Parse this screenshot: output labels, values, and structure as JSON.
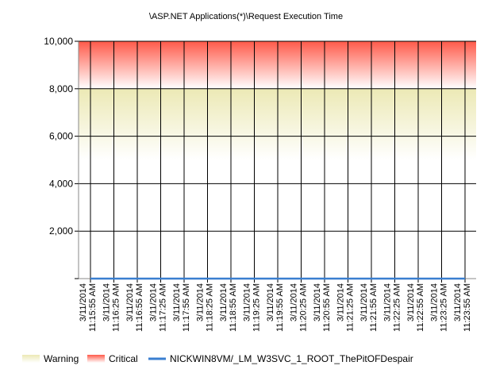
{
  "chart_data": {
    "type": "line",
    "title": "\\ASP.NET Applications(*)\\Request Execution Time",
    "xlabel": "",
    "ylabel": "",
    "ylim": [
      0,
      10000
    ],
    "y_ticks": [
      0,
      2000,
      4000,
      6000,
      8000,
      10000
    ],
    "y_tick_labels": [
      "",
      "2,000",
      "4,000",
      "6,000",
      "8,000",
      "10,000"
    ],
    "grid": true,
    "x_tick_labels": [
      {
        "date": "3/11/2014",
        "time": "11:15:55 AM"
      },
      {
        "date": "3/11/2014",
        "time": "11:16:25 AM"
      },
      {
        "date": "3/11/2014",
        "time": "11:16:55 AM"
      },
      {
        "date": "3/11/2014",
        "time": "11:17:25 AM"
      },
      {
        "date": "3/11/2014",
        "time": "11:17:55 AM"
      },
      {
        "date": "3/11/2014",
        "time": "11:18:25 AM"
      },
      {
        "date": "3/11/2014",
        "time": "11:18:55 AM"
      },
      {
        "date": "3/11/2014",
        "time": "11:19:25 AM"
      },
      {
        "date": "3/11/2014",
        "time": "11:19:55 AM"
      },
      {
        "date": "3/11/2014",
        "time": "11:20:25 AM"
      },
      {
        "date": "3/11/2014",
        "time": "11:20:55 AM"
      },
      {
        "date": "3/11/2014",
        "time": "11:21:25 AM"
      },
      {
        "date": "3/11/2014",
        "time": "11:21:55 AM"
      },
      {
        "date": "3/11/2014",
        "time": "11:22:25 AM"
      },
      {
        "date": "3/11/2014",
        "time": "11:22:55 AM"
      },
      {
        "date": "3/11/2014",
        "time": "11:23:25 AM"
      },
      {
        "date": "3/11/2014",
        "time": "11:23:55 AM"
      }
    ],
    "thresholds": [
      {
        "name": "Warning",
        "from": 5000,
        "to": 8000,
        "color": "#ece9b5"
      },
      {
        "name": "Critical",
        "from": 8000,
        "to": 10000,
        "color": "#ff5a4a"
      }
    ],
    "series": [
      {
        "name": "NICKWIN8VM/_LM_W3SVC_1_ROOT_ThePitOFDespair",
        "color": "#3a7fd0",
        "values": [
          0,
          0,
          0,
          0,
          0,
          0,
          0,
          0,
          0,
          0,
          0,
          0,
          0,
          0,
          0,
          0,
          0
        ]
      }
    ],
    "legend_position": "bottom-left"
  }
}
